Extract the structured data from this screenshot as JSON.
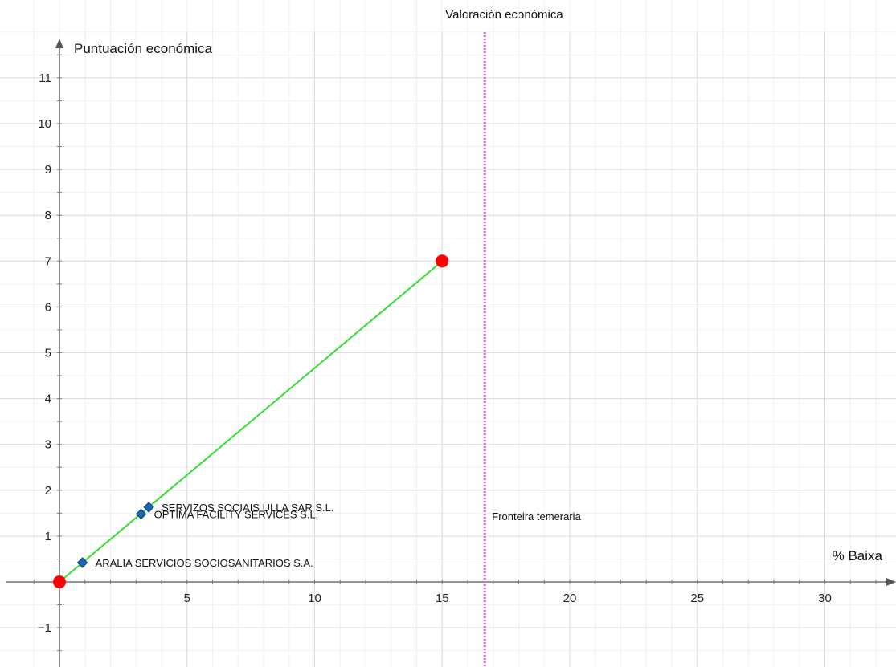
{
  "chart_data": {
    "type": "scatter",
    "title": "Valoración económica",
    "xlabel": "% Baixa",
    "ylabel": "Puntuación económica",
    "xlim": [
      -2,
      32.8
    ],
    "ylim": [
      -1.7,
      11.8
    ],
    "x_ticks": [
      5,
      10,
      15,
      20,
      25,
      30
    ],
    "y_ticks": [
      -1,
      1,
      2,
      3,
      4,
      5,
      6,
      7,
      8,
      9,
      10,
      11
    ],
    "grid": true,
    "line": {
      "color": "#33dd33",
      "points": [
        {
          "x": 0,
          "y": 0
        },
        {
          "x": 15,
          "y": 7
        }
      ]
    },
    "endpoints": {
      "color": "#ff0000",
      "points": [
        {
          "x": 0,
          "y": 0
        },
        {
          "x": 15,
          "y": 7
        }
      ]
    },
    "series": [
      {
        "marker_color": "#1a66b8",
        "points": [
          {
            "label": "ARALIA SERVICIOS SOCIOSANITARIOS S.A.",
            "x": 0.9,
            "y": 0.42
          },
          {
            "label": "OPTIMA FACILITY SERVICES S.L.",
            "x": 3.2,
            "y": 1.48
          },
          {
            "label": "SERVIZOS SOCIAIS ULLA SAR S.L.",
            "x": 3.5,
            "y": 1.63
          }
        ]
      }
    ],
    "vertical_line": {
      "x": 16.67,
      "label": "Fronteira temeraria",
      "color": "#dd66dd",
      "style": "dotted"
    }
  }
}
